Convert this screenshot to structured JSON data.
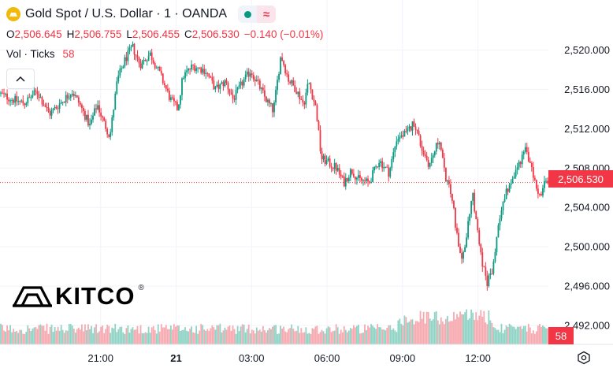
{
  "header": {
    "title": "Gold Spot / U.S. Dollar · 1 · OANDA",
    "ohlc": {
      "o_label": "O",
      "o_value": "2,506.645",
      "h_label": "H",
      "h_value": "2,506.755",
      "l_label": "L",
      "l_value": "2,506.455",
      "c_label": "C",
      "c_value": "2,506.530",
      "change": "−0.140 (−0.01%)"
    },
    "volume": {
      "label": "Vol · Ticks",
      "value": "58"
    }
  },
  "logo": {
    "text": "KITCO",
    "reg": "®"
  },
  "price_tag": "2,506.530",
  "volume_tag": "58",
  "colors": {
    "up": "#089981",
    "down": "#f23645",
    "up_vol": "#8fd3c5",
    "down_vol": "#f7a9b0",
    "gold": "#f0b90b"
  },
  "chart_data": {
    "type": "candlestick",
    "symbol": "Gold Spot / U.S. Dollar",
    "interval": "1",
    "source": "OANDA",
    "y_ticks": [
      "2,520.000",
      "2,516.000",
      "2,512.000",
      "2,508.000",
      "2,504.000",
      "2,500.000",
      "2,496.000",
      "2,492.000"
    ],
    "y_tick_values": [
      2520,
      2516,
      2512,
      2508,
      2504,
      2500,
      2496,
      2492
    ],
    "x_ticks": [
      "21:00",
      "21",
      "03:00",
      "06:00",
      "09:00",
      "12:00"
    ],
    "x_tick_hours": [
      21,
      24,
      27,
      30,
      33,
      36
    ],
    "x_range_hours": [
      17.0,
      38.8
    ],
    "ylim": [
      2491.2,
      2521.8
    ],
    "last_price": 2506.53,
    "last_volume": 58,
    "price_path": [
      [
        17.0,
        2515.6
      ],
      [
        17.5,
        2515.0
      ],
      [
        18.0,
        2514.6
      ],
      [
        18.5,
        2515.8
      ],
      [
        19.0,
        2513.5
      ],
      [
        19.5,
        2514.8
      ],
      [
        19.9,
        2515.8
      ],
      [
        20.2,
        2514.5
      ],
      [
        20.6,
        2512.3
      ],
      [
        20.9,
        2514.5
      ],
      [
        21.1,
        2513.0
      ],
      [
        21.4,
        2511.2
      ],
      [
        21.7,
        2517.0
      ],
      [
        22.0,
        2519.0
      ],
      [
        22.3,
        2520.3
      ],
      [
        22.6,
        2518.5
      ],
      [
        23.0,
        2519.6
      ],
      [
        23.4,
        2517.5
      ],
      [
        23.8,
        2515.0
      ],
      [
        24.1,
        2514.0
      ],
      [
        24.3,
        2517.3
      ],
      [
        24.7,
        2518.4
      ],
      [
        25.2,
        2517.9
      ],
      [
        25.6,
        2516.0
      ],
      [
        26.0,
        2516.8
      ],
      [
        26.3,
        2515.0
      ],
      [
        26.7,
        2516.8
      ],
      [
        27.0,
        2517.9
      ],
      [
        27.3,
        2516.5
      ],
      [
        27.6,
        2515.0
      ],
      [
        27.9,
        2513.8
      ],
      [
        28.2,
        2519.5
      ],
      [
        28.5,
        2517.0
      ],
      [
        28.8,
        2516.0
      ],
      [
        29.1,
        2514.5
      ],
      [
        29.3,
        2516.8
      ],
      [
        29.6,
        2514.0
      ],
      [
        29.8,
        2509.0
      ],
      [
        30.1,
        2508.5
      ],
      [
        30.4,
        2508.0
      ],
      [
        30.7,
        2506.5
      ],
      [
        31.0,
        2507.8
      ],
      [
        31.3,
        2506.8
      ],
      [
        31.7,
        2506.5
      ],
      [
        32.1,
        2508.8
      ],
      [
        32.5,
        2507.5
      ],
      [
        32.8,
        2511.0
      ],
      [
        33.2,
        2511.5
      ],
      [
        33.5,
        2512.7
      ],
      [
        33.8,
        2510.0
      ],
      [
        34.1,
        2508.3
      ],
      [
        34.5,
        2511.0
      ],
      [
        34.7,
        2507.5
      ],
      [
        35.0,
        2505.0
      ],
      [
        35.2,
        2501.0
      ],
      [
        35.4,
        2498.5
      ],
      [
        35.6,
        2501.5
      ],
      [
        35.8,
        2505.8
      ],
      [
        36.0,
        2502.0
      ],
      [
        36.2,
        2498.5
      ],
      [
        36.4,
        2496.3
      ],
      [
        36.6,
        2497.5
      ],
      [
        36.8,
        2501.5
      ],
      [
        37.0,
        2504.5
      ],
      [
        37.3,
        2506.5
      ],
      [
        37.6,
        2508.0
      ],
      [
        37.9,
        2510.0
      ],
      [
        38.1,
        2508.5
      ],
      [
        38.3,
        2506.5
      ],
      [
        38.5,
        2505.0
      ],
      [
        38.7,
        2506.5
      ],
      [
        38.8,
        2506.53
      ]
    ],
    "volume_ticks_approx": "30-60 per bar, spike to ~100 around 09:00-10:30"
  }
}
